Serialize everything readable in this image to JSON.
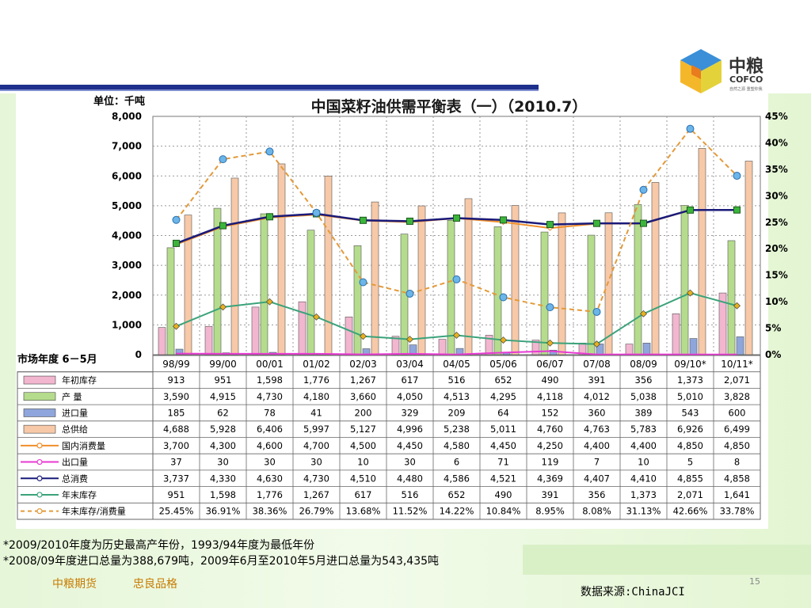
{
  "slide": {
    "logo_cn": "中粮",
    "logo_en": "COFCO",
    "logo_sub": "自然之源 重塑你我",
    "notes": [
      "*2009/2010年度为历史最高产年份，1993/94年度为最低年份",
      "*2008/09年度进口总量为388,679吨，2009年6月至2010年5月进口总量为543,435吨"
    ],
    "footer_company": "中粮期货",
    "footer_motto": "忠良品格",
    "page_number": "15",
    "source": "数据来源:ChinaJCI"
  },
  "colors": {
    "beg_stock": "#f2b6cf",
    "production": "#b5dc8c",
    "imports": "#8fa6dc",
    "total_supply": "#f7c9a8",
    "domestic": "#f08f2a",
    "exports": "#e83ad3",
    "total_consumption": "#1a1a7a",
    "end_stock": "#3aa37a",
    "ratio": "#e39a3a"
  },
  "chart_data": {
    "type": "bar",
    "title": "中国菜籽油供需平衡表（一）（2010.7）",
    "ylabel_unit": "单位：千吨",
    "x_axis_label": "市场年度 6－5月",
    "categories": [
      "98/99",
      "99/00",
      "00/01",
      "01/02",
      "02/03",
      "03/04",
      "04/05",
      "05/06",
      "06/07",
      "07/08",
      "08/09",
      "09/10*",
      "10/11*"
    ],
    "ylim": [
      0,
      8000
    ],
    "y_ticks": [
      "8,000",
      "7,000",
      "6,000",
      "5,000",
      "4,000",
      "3,000",
      "2,000",
      "1,000",
      "0"
    ],
    "y2lim": [
      0,
      45
    ],
    "y2_ticks": [
      "45%",
      "40%",
      "35%",
      "30%",
      "25%",
      "20%",
      "15%",
      "10%",
      "5%",
      "0%"
    ],
    "grid": true,
    "series": [
      {
        "name": "年初库存",
        "kind": "bar",
        "values": [
          913,
          951,
          1598,
          1776,
          1267,
          617,
          516,
          652,
          490,
          391,
          356,
          1373,
          2071
        ],
        "labels": [
          "913",
          "951",
          "1,598",
          "1,776",
          "1,267",
          "617",
          "516",
          "652",
          "490",
          "391",
          "356",
          "1,373",
          "2,071"
        ]
      },
      {
        "name": "产 量",
        "kind": "bar",
        "values": [
          3590,
          4915,
          4730,
          4180,
          3660,
          4050,
          4513,
          4295,
          4118,
          4012,
          5038,
          5010,
          3828
        ],
        "labels": [
          "3,590",
          "4,915",
          "4,730",
          "4,180",
          "3,660",
          "4,050",
          "4,513",
          "4,295",
          "4,118",
          "4,012",
          "5,038",
          "5,010",
          "3,828"
        ]
      },
      {
        "name": "进口量",
        "kind": "bar",
        "values": [
          185,
          62,
          78,
          41,
          200,
          329,
          209,
          64,
          152,
          360,
          389,
          543,
          600
        ],
        "labels": [
          "185",
          "62",
          "78",
          "41",
          "200",
          "329",
          "209",
          "64",
          "152",
          "360",
          "389",
          "543",
          "600"
        ]
      },
      {
        "name": "总供给",
        "kind": "bar",
        "values": [
          4688,
          5928,
          6406,
          5997,
          5127,
          4996,
          5238,
          5011,
          4760,
          4763,
          5783,
          6926,
          6499
        ],
        "labels": [
          "4,688",
          "5,928",
          "6,406",
          "5,997",
          "5,127",
          "4,996",
          "5,238",
          "5,011",
          "4,760",
          "4,763",
          "5,783",
          "6,926",
          "6,499"
        ]
      },
      {
        "name": "国内消费量",
        "kind": "line",
        "values": [
          3700,
          4300,
          4600,
          4700,
          4500,
          4450,
          4580,
          4450,
          4250,
          4400,
          4400,
          4850,
          4850
        ],
        "labels": [
          "3,700",
          "4,300",
          "4,600",
          "4,700",
          "4,500",
          "4,450",
          "4,580",
          "4,450",
          "4,250",
          "4,400",
          "4,400",
          "4,850",
          "4,850"
        ]
      },
      {
        "name": "出口量",
        "kind": "line",
        "values": [
          37,
          30,
          30,
          30,
          10,
          30,
          6,
          71,
          119,
          7,
          10,
          5,
          8
        ],
        "labels": [
          "37",
          "30",
          "30",
          "30",
          "10",
          "30",
          "6",
          "71",
          "119",
          "7",
          "10",
          "5",
          "8"
        ]
      },
      {
        "name": "总消费",
        "kind": "line",
        "values": [
          3737,
          4330,
          4630,
          4730,
          4510,
          4480,
          4586,
          4521,
          4369,
          4407,
          4410,
          4855,
          4858
        ],
        "labels": [
          "3,737",
          "4,330",
          "4,630",
          "4,730",
          "4,510",
          "4,480",
          "4,586",
          "4,521",
          "4,369",
          "4,407",
          "4,410",
          "4,855",
          "4,858"
        ]
      },
      {
        "name": "年末库存",
        "kind": "line",
        "values": [
          951,
          1598,
          1776,
          1267,
          617,
          516,
          652,
          490,
          391,
          356,
          1373,
          2071,
          1641
        ],
        "labels": [
          "951",
          "1,598",
          "1,776",
          "1,267",
          "617",
          "516",
          "652",
          "490",
          "391",
          "356",
          "1,373",
          "2,071",
          "1,641"
        ]
      },
      {
        "name": "年末库存/消费量",
        "kind": "line",
        "axis": "right",
        "values": [
          25.45,
          36.91,
          38.36,
          26.79,
          13.68,
          11.52,
          14.22,
          10.84,
          8.95,
          8.08,
          31.13,
          42.66,
          33.78
        ],
        "labels": [
          "25.45%",
          "36.91%",
          "38.36%",
          "26.79%",
          "13.68%",
          "11.52%",
          "14.22%",
          "10.84%",
          "8.95%",
          "8.08%",
          "31.13%",
          "42.66%",
          "33.78%"
        ]
      }
    ]
  }
}
